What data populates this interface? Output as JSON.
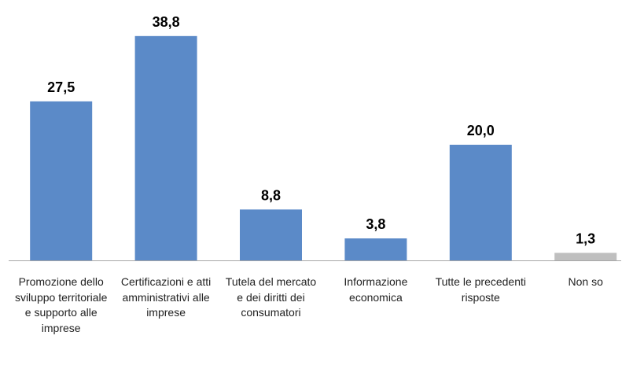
{
  "chart_data": {
    "type": "bar",
    "categories": [
      "Promozione dello sviluppo territoriale e supporto alle imprese",
      "Certificazioni e atti amministrativi alle imprese",
      "Tutela del mercato e dei diritti dei consumatori",
      "Informazione economica",
      "Tutte le precedenti risposte",
      "Non so"
    ],
    "values": [
      27.5,
      38.8,
      8.8,
      3.8,
      20.0,
      1.3
    ],
    "value_labels": [
      "27,5",
      "38,8",
      "8,8",
      "3,8",
      "20,0",
      "1,3"
    ],
    "colors": [
      "#5b8ac8",
      "#5b8ac8",
      "#5b8ac8",
      "#5b8ac8",
      "#5b8ac8",
      "#bfbfbf"
    ],
    "ylim": [
      0,
      40
    ]
  }
}
